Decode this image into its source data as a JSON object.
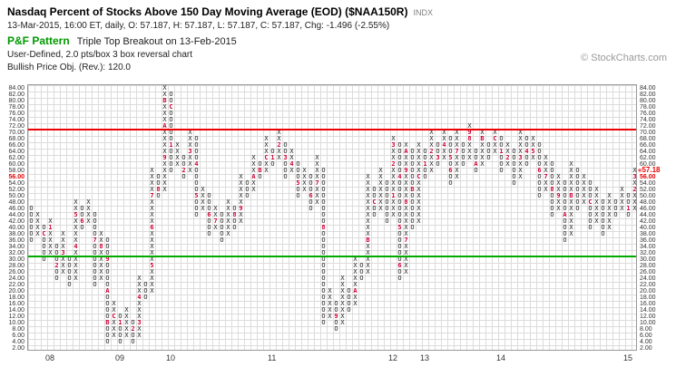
{
  "header": {
    "title": "Nasdaq Percent of Stocks Above 150 Day Moving Average (EOD) ($NAA150R)",
    "symbol_suffix": "INDX",
    "quote_line": "13-Mar-2015, 16:00 ET, daily, O: 57.187, H: 57.187, L: 57.187, C: 57.187, Chg: -1.496 (-2.55%)",
    "pattern_label": "P&F Pattern",
    "pattern_text": "Triple Top Breakout on 13-Feb-2015",
    "settings_line": "User-Defined, 2.0 pts/box 3 box reversal chart",
    "objective_line": "Bullish Price Obj. (Rev.): 120.0",
    "watermark": "© StockCharts.com"
  },
  "colors": {
    "pattern_green": "#009900",
    "overbought_line": "#ee0000",
    "oversold_line": "#00aa00",
    "month_marker": "#cc0033",
    "glyph": "#222222",
    "grid": "#dcdcdc",
    "current_price": "#ee0000"
  },
  "chart_data": {
    "type": "point-and-figure",
    "title": "Nasdaq Percent of Stocks Above 150 Day Moving Average (EOD) ($NAA150R)",
    "box_size": 2.0,
    "reversal": 3,
    "ylim": [
      2,
      84
    ],
    "grid": true,
    "y_ticks": [
      "84.00",
      "82.00",
      "80.00",
      "78.00",
      "76.00",
      "74.00",
      "72.00",
      "70.00",
      "68.00",
      "66.00",
      "64.00",
      "62.00",
      "60.00",
      "58.00",
      "56.00",
      "54.00",
      "52.00",
      "50.00",
      "48.00",
      "46.00",
      "44.00",
      "42.00",
      "40.00",
      "38.00",
      "36.00",
      "34.00",
      "32.00",
      "30.00",
      "28.00",
      "26.00",
      "24.00",
      "22.00",
      "20.00",
      "18.00",
      "16.00",
      "14.00",
      "12.00",
      "10.00",
      "8.00",
      "6.00",
      "4.00",
      "2.00"
    ],
    "left_axis_highlight": "56.00",
    "current_price_value": 57.18,
    "current_price_label": "«57.18",
    "overbought_level": 70,
    "oversold_level": 30,
    "x_year_labels": [
      {
        "label": "08",
        "col": 3
      },
      {
        "label": "09",
        "col": 14
      },
      {
        "label": "10",
        "col": 22
      },
      {
        "label": "11",
        "col": 38
      },
      {
        "label": "12",
        "col": 57
      },
      {
        "label": "13",
        "col": 62
      },
      {
        "label": "14",
        "col": 74
      },
      {
        "label": "15",
        "col": 94
      }
    ],
    "columns": [
      [
        "O",
        36,
        46
      ],
      [
        "X",
        38,
        44
      ],
      [
        "O",
        30,
        40,
        {
          "38": "C"
        }
      ],
      [
        "X",
        32,
        42,
        {
          "40": "1"
        }
      ],
      [
        "O",
        24,
        34,
        {
          "28": "2"
        }
      ],
      [
        "X",
        26,
        38,
        {
          "32": "3"
        }
      ],
      [
        "O",
        22,
        30
      ],
      [
        "X",
        24,
        48,
        {
          "34": "4",
          "44": "5"
        }
      ],
      [
        "O",
        40,
        46,
        {
          "42": "6"
        }
      ],
      [
        "X",
        42,
        48
      ],
      [
        "O",
        22,
        44,
        {
          "36": "7"
        }
      ],
      [
        "X",
        24,
        38,
        {
          "34": "8"
        }
      ],
      [
        "O",
        4,
        36,
        {
          "30": "9",
          "20": "A",
          "10": "B"
        }
      ],
      [
        "X",
        6,
        16,
        {
          "12": "C"
        }
      ],
      [
        "O",
        4,
        12,
        {
          "10": "1"
        }
      ],
      [
        "X",
        6,
        14
      ],
      [
        "O",
        4,
        10,
        {
          "8": "2"
        }
      ],
      [
        "X",
        6,
        24,
        {
          "10": "3",
          "18": "4"
        }
      ],
      [
        "O",
        18,
        22
      ],
      [
        "X",
        20,
        58,
        {
          "28": "5",
          "40": "6",
          "50": "7"
        }
      ],
      [
        "O",
        50,
        56,
        {
          "52": "8"
        }
      ],
      [
        "X",
        52,
        84,
        {
          "62": "9",
          "72": "A",
          "80": "B"
        }
      ],
      [
        "O",
        58,
        82,
        {
          "78": "C",
          "66": "1"
        }
      ],
      [
        "X",
        60,
        66
      ],
      [
        "O",
        56,
        62,
        {
          "58": "2"
        }
      ],
      [
        "X",
        58,
        70,
        {
          "64": "3"
        }
      ],
      [
        "O",
        44,
        68,
        {
          "60": "4",
          "50": "5"
        }
      ],
      [
        "X",
        46,
        52
      ],
      [
        "O",
        38,
        50,
        {
          "44": "6"
        }
      ],
      [
        "X",
        40,
        46,
        {
          "42": "7"
        }
      ],
      [
        "O",
        36,
        44
      ],
      [
        "X",
        38,
        48
      ],
      [
        "O",
        40,
        46,
        {
          "44": "8"
        }
      ],
      [
        "X",
        42,
        56,
        {
          "46": "9"
        }
      ],
      [
        "O",
        50,
        54
      ],
      [
        "X",
        52,
        62,
        {
          "56": "A"
        }
      ],
      [
        "O",
        56,
        60,
        {
          "58": "B"
        }
      ],
      [
        "X",
        58,
        68,
        {
          "62": "C"
        }
      ],
      [
        "O",
        60,
        64,
        {
          "62": "1"
        }
      ],
      [
        "X",
        62,
        70,
        {
          "66": "2"
        }
      ],
      [
        "O",
        56,
        66,
        {
          "62": "3"
        }
      ],
      [
        "X",
        58,
        64,
        {
          "60": "4"
        }
      ],
      [
        "O",
        50,
        60,
        {
          "54": "5"
        }
      ],
      [
        "X",
        52,
        58
      ],
      [
        "O",
        46,
        56,
        {
          "50": "6"
        }
      ],
      [
        "X",
        48,
        62,
        {
          "54": "7"
        }
      ],
      [
        "O",
        10,
        58,
        {
          "40": "8"
        }
      ],
      [
        "X",
        12,
        20
      ],
      [
        "O",
        8,
        16,
        {
          "12": "9"
        }
      ],
      [
        "X",
        10,
        24
      ],
      [
        "O",
        14,
        20
      ],
      [
        "X",
        16,
        30,
        {
          "20": "A"
        }
      ],
      [
        "O",
        24,
        28
      ],
      [
        "X",
        26,
        56,
        {
          "36": "B"
        }
      ],
      [
        "O",
        44,
        52,
        {
          "48": "C"
        }
      ],
      [
        "X",
        46,
        58
      ],
      [
        "O",
        42,
        54
      ],
      [
        "X",
        44,
        68,
        {
          "50": "1",
          "60": "2",
          "66": "3"
        }
      ],
      [
        "O",
        24,
        66,
        {
          "56": "4",
          "40": "5",
          "28": "6"
        }
      ],
      [
        "X",
        26,
        66,
        {
          "36": "7",
          "48": "8",
          "58": "9",
          "64": "A"
        }
      ],
      [
        "O",
        40,
        64,
        {
          "52": "B"
        }
      ],
      [
        "X",
        42,
        66,
        {
          "56": "C"
        }
      ],
      [
        "O",
        56,
        64,
        {
          "60": "1"
        }
      ],
      [
        "X",
        58,
        70,
        {
          "64": "2"
        }
      ],
      [
        "O",
        60,
        66,
        {
          "62": "3"
        }
      ],
      [
        "X",
        62,
        70,
        {
          "66": "4"
        }
      ],
      [
        "O",
        54,
        68,
        {
          "62": "5",
          "58": "6"
        }
      ],
      [
        "X",
        56,
        70,
        {
          "64": "7"
        }
      ],
      [
        "O",
        60,
        66
      ],
      [
        "X",
        62,
        72,
        {
          "68": "8",
          "70": "9"
        }
      ],
      [
        "O",
        58,
        64,
        {
          "60": "A"
        }
      ],
      [
        "X",
        60,
        70,
        {
          "68": "B"
        }
      ],
      [
        "O",
        62,
        66
      ],
      [
        "X",
        64,
        70,
        {
          "68": "C"
        }
      ],
      [
        "O",
        58,
        68,
        {
          "64": "1"
        }
      ],
      [
        "X",
        60,
        66,
        {
          "62": "2"
        }
      ],
      [
        "O",
        54,
        64
      ],
      [
        "X",
        56,
        70,
        {
          "62": "3"
        }
      ],
      [
        "O",
        60,
        68,
        {
          "64": "4"
        }
      ],
      [
        "X",
        62,
        68,
        {
          "64": "5"
        }
      ],
      [
        "O",
        50,
        66,
        {
          "58": "6"
        }
      ],
      [
        "X",
        52,
        62,
        {
          "56": "7"
        }
      ],
      [
        "O",
        44,
        60,
        {
          "52": "8"
        }
      ],
      [
        "X",
        46,
        56,
        {
          "50": "9"
        }
      ],
      [
        "O",
        36,
        54,
        {
          "44": "A"
        }
      ],
      [
        "X",
        38,
        60,
        {
          "50": "B"
        }
      ],
      [
        "O",
        46,
        58
      ],
      [
        "X",
        48,
        56
      ],
      [
        "O",
        40,
        54,
        {
          "48": "C"
        }
      ],
      [
        "X",
        42,
        52
      ],
      [
        "O",
        38,
        48
      ],
      [
        "X",
        40,
        50
      ],
      [
        "O",
        44,
        48
      ],
      [
        "X",
        46,
        52
      ],
      [
        "O",
        44,
        50,
        {
          "46": "1"
        }
      ],
      [
        "X",
        46,
        58,
        {
          "52": "2",
          "56": "3"
        }
      ]
    ]
  }
}
